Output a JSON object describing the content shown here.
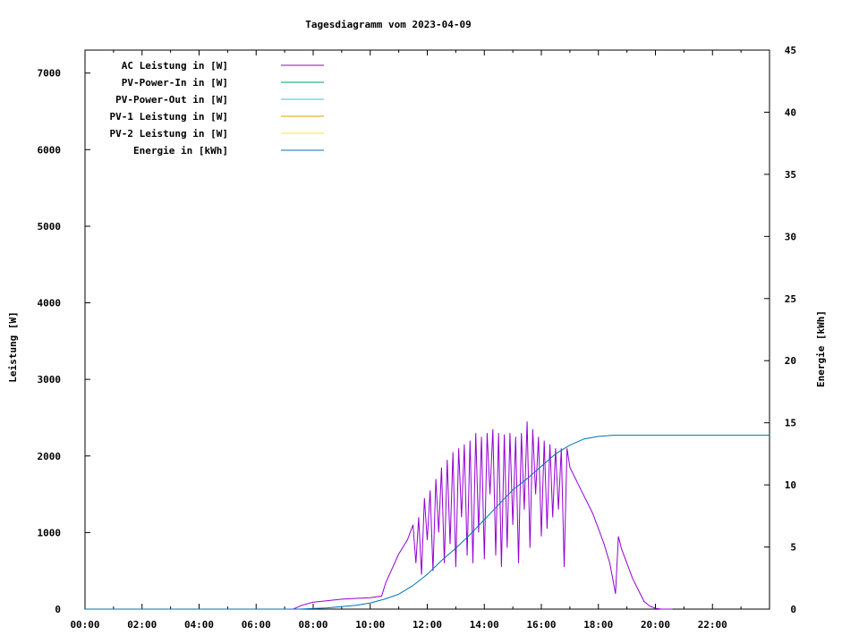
{
  "chart_data": {
    "type": "line",
    "title": "Tagesdiagramm vom 2023-04-09",
    "ylabel": "Leistung [W]",
    "y2label": "Energie [kWh]",
    "xlim": [
      0,
      24
    ],
    "ylim": [
      0,
      7300
    ],
    "y2lim": [
      0,
      45
    ],
    "x_ticks": [
      "00:00",
      "02:00",
      "04:00",
      "06:00",
      "08:00",
      "10:00",
      "12:00",
      "14:00",
      "16:00",
      "18:00",
      "20:00",
      "22:00"
    ],
    "y_ticks": [
      0,
      1000,
      2000,
      3000,
      4000,
      5000,
      6000,
      7000
    ],
    "y2_ticks": [
      0,
      5,
      10,
      15,
      20,
      25,
      30,
      35,
      40,
      45
    ],
    "legend_position": "top-left",
    "grid": false,
    "series": [
      {
        "name": "AC Leistung in [W]",
        "color": "#9400d3",
        "axis": "left",
        "x": [
          7.3,
          7.6,
          8.0,
          8.5,
          9.0,
          9.5,
          10.0,
          10.4,
          10.55,
          11.0,
          11.3,
          11.5,
          11.6,
          11.7,
          11.8,
          11.9,
          12.0,
          12.1,
          12.2,
          12.3,
          12.4,
          12.5,
          12.6,
          12.7,
          12.8,
          12.9,
          13.0,
          13.1,
          13.2,
          13.3,
          13.4,
          13.5,
          13.6,
          13.7,
          13.8,
          13.9,
          14.0,
          14.1,
          14.2,
          14.3,
          14.4,
          14.5,
          14.6,
          14.7,
          14.8,
          14.9,
          15.0,
          15.1,
          15.2,
          15.3,
          15.4,
          15.5,
          15.6,
          15.7,
          15.8,
          15.9,
          16.0,
          16.1,
          16.2,
          16.3,
          16.4,
          16.5,
          16.6,
          16.7,
          16.8,
          16.9,
          17.0,
          17.2,
          17.4,
          17.6,
          17.8,
          18.0,
          18.2,
          18.4,
          18.6,
          18.7,
          18.8,
          18.85,
          18.9,
          19.0,
          19.2,
          19.4,
          19.6,
          19.8,
          20.0,
          20.2,
          20.4,
          20.6
        ],
        "y": [
          0,
          50,
          90,
          110,
          130,
          140,
          150,
          170,
          350,
          720,
          900,
          1100,
          600,
          1200,
          450,
          1450,
          900,
          1550,
          500,
          1700,
          1000,
          1850,
          600,
          1950,
          850,
          2050,
          550,
          2100,
          1200,
          2150,
          700,
          2200,
          600,
          2300,
          1000,
          2250,
          650,
          2300,
          1500,
          2350,
          700,
          2300,
          550,
          2280,
          800,
          2300,
          1100,
          2250,
          600,
          2300,
          1300,
          2450,
          800,
          2350,
          1500,
          2250,
          950,
          2200,
          1050,
          2150,
          1200,
          2100,
          1300,
          2100,
          550,
          2100,
          1850,
          1700,
          1550,
          1400,
          1250,
          1050,
          850,
          600,
          200,
          950,
          800,
          750,
          700,
          600,
          400,
          250,
          100,
          40,
          10,
          0,
          0,
          0
        ]
      },
      {
        "name": "PV-Power-In in [W]",
        "color": "#009e73",
        "axis": "left",
        "x": [],
        "y": []
      },
      {
        "name": "PV-Power-Out in [W]",
        "color": "#56b4e9",
        "axis": "left",
        "x": [],
        "y": []
      },
      {
        "name": "PV-1 Leistung in [W]",
        "color": "#e69f00",
        "axis": "left",
        "x": [],
        "y": []
      },
      {
        "name": "PV-2 Leistung in [W]",
        "color": "#f0e442",
        "axis": "left",
        "x": [],
        "y": []
      },
      {
        "name": "Energie in [kWh]",
        "color": "#0072b2",
        "axis": "right",
        "x": [
          0,
          7.5,
          8.5,
          9.5,
          10.0,
          10.5,
          11.0,
          11.5,
          12.0,
          12.5,
          13.0,
          13.5,
          14.0,
          14.5,
          15.0,
          15.5,
          16.0,
          16.5,
          17.0,
          17.5,
          18.0,
          18.5,
          19.0,
          19.5,
          20.0,
          20.5,
          21.0,
          22.0,
          24.0
        ],
        "y": [
          0,
          0,
          0.1,
          0.3,
          0.5,
          0.8,
          1.2,
          1.9,
          2.8,
          3.9,
          4.9,
          6.0,
          7.2,
          8.4,
          9.6,
          10.5,
          11.5,
          12.5,
          13.2,
          13.7,
          13.9,
          14.0,
          14.0,
          14.0,
          14.0,
          14.0,
          14.0,
          14.0,
          14.0
        ]
      }
    ]
  }
}
